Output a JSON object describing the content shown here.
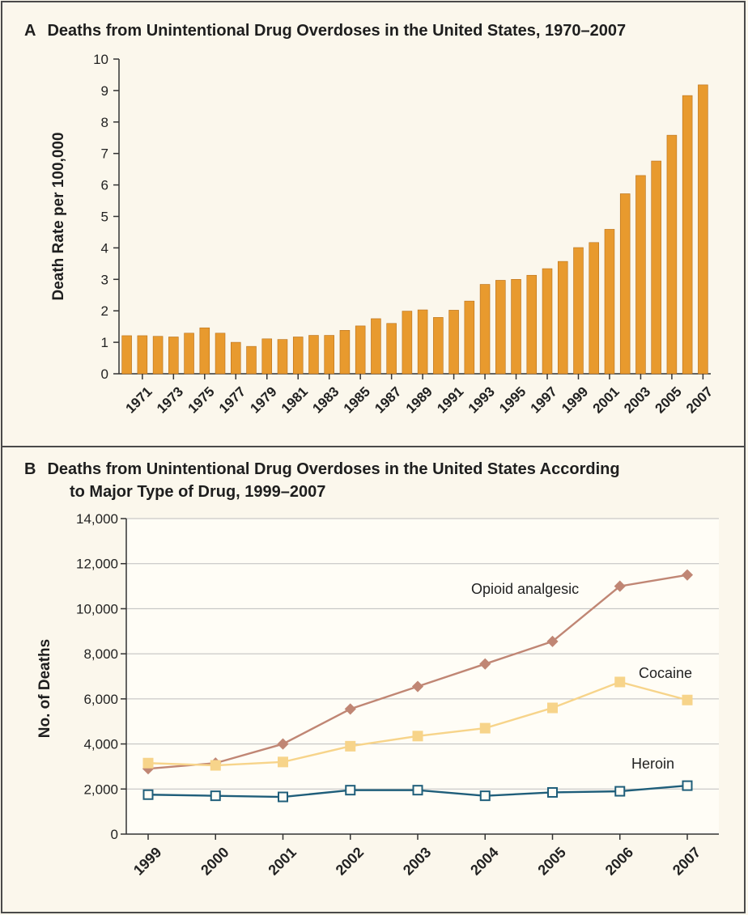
{
  "figure": {
    "panel_a": {
      "letter": "A",
      "title": "Deaths from Unintentional Drug Overdoses in the United States, 1970–2007"
    },
    "panel_b": {
      "letter": "B",
      "title_line1": "Deaths from Unintentional Drug Overdoses in the United States According",
      "title_line2": "to Major Type of Drug, 1999–2007"
    }
  },
  "colors": {
    "bar": "#e89a2e",
    "bar_stroke": "#b8701a",
    "opioid": "#c08674",
    "cocaine": "#f7d48a",
    "heroin": "#1f5e7a",
    "grid": "#bdbdbd",
    "axis": "#333333",
    "panel_bg": "#fbf7ec"
  },
  "chart_data": [
    {
      "type": "bar",
      "title": "Deaths from Unintentional Drug Overdoses in the United States, 1970–2007",
      "xlabel": "",
      "ylabel": "Death Rate per 100,000",
      "categories": [
        "1970",
        "1971",
        "1972",
        "1973",
        "1974",
        "1975",
        "1976",
        "1977",
        "1978",
        "1979",
        "1980",
        "1981",
        "1982",
        "1983",
        "1984",
        "1985",
        "1986",
        "1987",
        "1988",
        "1989",
        "1990",
        "1991",
        "1992",
        "1993",
        "1994",
        "1995",
        "1996",
        "1997",
        "1998",
        "1999",
        "2000",
        "2001",
        "2002",
        "2003",
        "2004",
        "2005",
        "2006",
        "2007"
      ],
      "tick_labels": [
        "1971",
        "1973",
        "1975",
        "1977",
        "1979",
        "1981",
        "1983",
        "1985",
        "1987",
        "1989",
        "1991",
        "1993",
        "1995",
        "1997",
        "1999",
        "2001",
        "2003",
        "2005",
        "2007"
      ],
      "values": [
        1.21,
        1.21,
        1.19,
        1.17,
        1.29,
        1.46,
        1.29,
        1.0,
        0.87,
        1.11,
        1.09,
        1.17,
        1.22,
        1.22,
        1.38,
        1.52,
        1.75,
        1.6,
        1.99,
        2.03,
        1.79,
        2.02,
        2.31,
        2.84,
        2.97,
        3.0,
        3.13,
        3.34,
        3.57,
        4.01,
        4.17,
        4.59,
        5.72,
        6.3,
        6.76,
        7.58,
        8.84,
        9.18
      ],
      "ylim": [
        0,
        10
      ],
      "yticks": [
        "0",
        "1",
        "2",
        "3",
        "4",
        "5",
        "6",
        "7",
        "8",
        "9",
        "10"
      ],
      "grid": false
    },
    {
      "type": "line",
      "title": "Deaths from Unintentional Drug Overdoses in the United States According to Major Type of Drug, 1999–2007",
      "xlabel": "",
      "ylabel": "No. of Deaths",
      "x": [
        "1999",
        "2000",
        "2001",
        "2002",
        "2003",
        "2004",
        "2005",
        "2006",
        "2007"
      ],
      "ylim": [
        0,
        14000
      ],
      "yticks": [
        "0",
        "2,000",
        "4,000",
        "6,000",
        "8,000",
        "10,000",
        "12,000",
        "14,000"
      ],
      "grid": true,
      "series": [
        {
          "name": "Opioid analgesic",
          "marker": "diamond",
          "values": [
            2900,
            3150,
            4000,
            5550,
            6550,
            7550,
            8550,
            11000,
            11500
          ]
        },
        {
          "name": "Cocaine",
          "marker": "square",
          "values": [
            3150,
            3050,
            3200,
            3900,
            4350,
            4700,
            5600,
            6750,
            5950
          ]
        },
        {
          "name": "Heroin",
          "marker": "open-square",
          "values": [
            1750,
            1700,
            1650,
            1950,
            1950,
            1700,
            1850,
            1900,
            2150
          ]
        }
      ]
    }
  ]
}
